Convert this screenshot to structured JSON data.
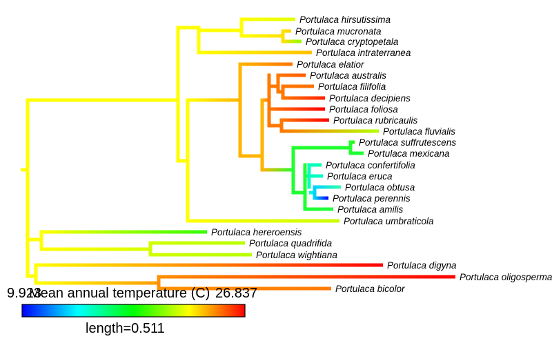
{
  "tips": [
    {
      "label": "Portulaca hirsutissima",
      "color": "#e2ff00"
    },
    {
      "label": "Portulaca mucronata",
      "color": "#ffd500"
    },
    {
      "label": "Portulaca cryptopetala",
      "color": "#8dff00"
    },
    {
      "label": "Portulaca intraterranea",
      "color": "#ffc000"
    },
    {
      "label": "Portulaca elatior",
      "color": "#ff7400"
    },
    {
      "label": "Portulaca australis",
      "color": "#ff5a00"
    },
    {
      "label": "Portulaca filifolia",
      "color": "#ff7000"
    },
    {
      "label": "Portulaca decipiens",
      "color": "#ff2000"
    },
    {
      "label": "Portulaca foliosa",
      "color": "#ff0000"
    },
    {
      "label": "Portulaca rubricaulis",
      "color": "#ff0000"
    },
    {
      "label": "Portulaca fluvialis",
      "color": "#b4ff00"
    },
    {
      "label": "Portulaca suffrutescens",
      "color": "#1aff00"
    },
    {
      "label": "Portulaca mexicana",
      "color": "#1aff3a"
    },
    {
      "label": "Portulaca confertifolia",
      "color": "#00ffb0"
    },
    {
      "label": "Portulaca eruca",
      "color": "#00ffc8"
    },
    {
      "label": "Portulaca obtusa",
      "color": "#30ffb0"
    },
    {
      "label": "Portulaca perennis",
      "color": "#0000ff"
    },
    {
      "label": "Portulaca amilis",
      "color": "#20ff40"
    },
    {
      "label": "Portulaca umbraticola",
      "color": "#c8ff00"
    },
    {
      "label": "Portulaca hereroensis",
      "color": "#30ff00"
    },
    {
      "label": "Portulaca quadrifida",
      "color": "#b8ff00"
    },
    {
      "label": "Portulaca wightiana",
      "color": "#b8ff00"
    },
    {
      "label": "Portulaca digyna",
      "color": "#ff0000"
    },
    {
      "label": "Portulaca oligosperma",
      "color": "#ff0000"
    },
    {
      "label": "Portulaca bicolor",
      "color": "#ff7a00"
    }
  ],
  "legend": {
    "title": "Mean annual temperature (C)",
    "min_label": "9.923",
    "max_label": "26.837",
    "length_label": "length=0.511",
    "colors": [
      "#0000ff",
      "#00ffff",
      "#00ff00",
      "#ffff00",
      "#ff0000"
    ]
  }
}
